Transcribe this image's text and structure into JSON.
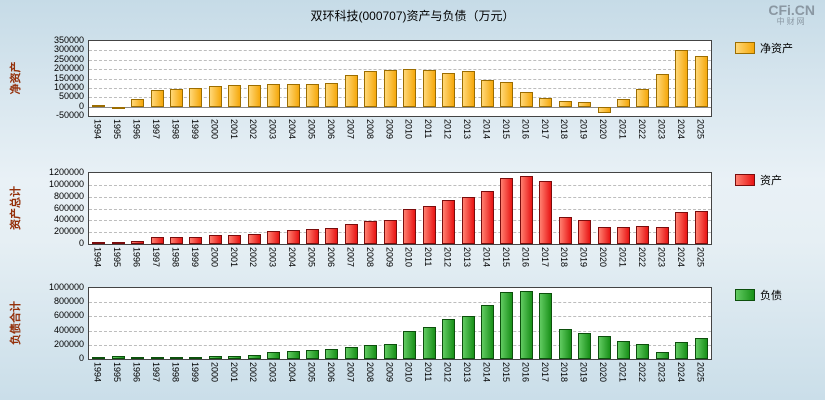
{
  "page": {
    "title": "双环科技(000707)资产与负债（万元）",
    "watermark": "CFi.CN",
    "watermark_sub": "中财网"
  },
  "years": [
    "1994",
    "1995",
    "1996",
    "1997",
    "1998",
    "1999",
    "2000",
    "2001",
    "2002",
    "2003",
    "2004",
    "2005",
    "2006",
    "2007",
    "2008",
    "2009",
    "2010",
    "2011",
    "2012",
    "2013",
    "2014",
    "2015",
    "2016",
    "2017",
    "2018",
    "2019",
    "2020",
    "2021",
    "2022",
    "2023",
    "2024",
    "2025"
  ],
  "chart_data": [
    {
      "type": "bar",
      "name": "净资产",
      "y_title": "净资产",
      "legend": "净资产",
      "color": "#F5A80C",
      "color_light": "#FFD878",
      "border_color": "#9C6D00",
      "ylim": [
        -50000,
        350000
      ],
      "yticks": [
        350000,
        300000,
        250000,
        200000,
        150000,
        100000,
        50000,
        0,
        -50000
      ],
      "values": [
        3000,
        -8000,
        40000,
        90000,
        95000,
        100000,
        110000,
        115000,
        118000,
        120000,
        122000,
        120000,
        125000,
        170000,
        190000,
        195000,
        200000,
        195000,
        180000,
        190000,
        140000,
        130000,
        80000,
        45000,
        30000,
        25000,
        -35000,
        40000,
        95000,
        175000,
        300000,
        270000
      ]
    },
    {
      "type": "bar",
      "name": "资产总计",
      "y_title": "资产总计",
      "legend": "资产",
      "color": "#E81414",
      "color_light": "#FF8070",
      "border_color": "#7A0C0C",
      "ylim": [
        0,
        1200000
      ],
      "yticks": [
        1200000,
        1000000,
        800000,
        600000,
        400000,
        200000,
        0
      ],
      "values": [
        30000,
        35000,
        45000,
        110000,
        115000,
        125000,
        145000,
        155000,
        175000,
        215000,
        235000,
        255000,
        270000,
        345000,
        390000,
        410000,
        590000,
        640000,
        740000,
        790000,
        900000,
        1120000,
        1150000,
        1060000,
        450000,
        400000,
        290000,
        290000,
        300000,
        280000,
        540000,
        560000
      ]
    },
    {
      "type": "bar",
      "name": "负债合计",
      "y_title": "负债合计",
      "legend": "负债",
      "color": "#189018",
      "color_light": "#62CB62",
      "border_color": "#0C4F0C",
      "ylim": [
        0,
        1000000
      ],
      "yticks": [
        1000000,
        800000,
        600000,
        400000,
        200000,
        0
      ],
      "values": [
        25000,
        40000,
        35000,
        30000,
        30000,
        35000,
        40000,
        45000,
        60000,
        95000,
        110000,
        130000,
        145000,
        175000,
        200000,
        215000,
        390000,
        445000,
        560000,
        600000,
        760000,
        950000,
        960000,
        930000,
        420000,
        370000,
        320000,
        250000,
        205000,
        105000,
        240000,
        290000
      ]
    }
  ]
}
